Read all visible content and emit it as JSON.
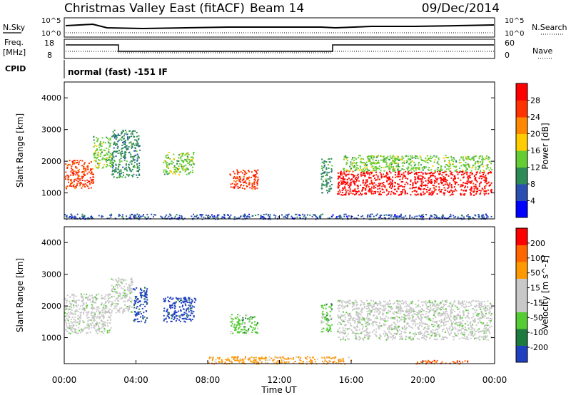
{
  "header": {
    "title": "Christmas Valley East (fitACF)",
    "beam": "Beam 14",
    "date": "09/Dec/2014"
  },
  "summary": {
    "nsky_label": "N.Sky",
    "nsearch_label": "N.Search",
    "freq_label_1": "Freq.",
    "freq_label_2": "[MHz]",
    "nave_label": "Nave",
    "cpid_label": "CPID",
    "cpid_text": "normal (fast) -151 IF",
    "noise_ticks_left": [
      "10^5",
      "10^0"
    ],
    "noise_ticks_right": [
      "10^5",
      "10^0"
    ],
    "freq_ticks": [
      "18",
      "8"
    ],
    "nave_ticks": [
      "60",
      "0"
    ]
  },
  "colors": {
    "power": [
      "#0000ff",
      "#2a4fb0",
      "#2e8b57",
      "#66cc33",
      "#ffcc00",
      "#ff8800",
      "#ff3300",
      "#ff0000"
    ],
    "velocity": [
      "#2040c0",
      "#1f7a3f",
      "#55cc33",
      "#c8c8c8",
      "#c8c8c8",
      "#ff9900",
      "#ff6600",
      "#ff0000"
    ]
  },
  "chart_data": [
    {
      "type": "heatmap",
      "name": "power",
      "ylabel": "Slant Range [km]",
      "ylim": [
        180,
        4500
      ],
      "yticks": [
        "4000",
        "3000",
        "2000",
        "1000"
      ],
      "xlim": [
        0,
        24
      ],
      "colorbar_label": "Power [dB]",
      "colorbar_ticks": [
        "28",
        "24",
        "20",
        "16",
        "12",
        "8",
        "4"
      ],
      "regions": [
        {
          "t0": 0.0,
          "t1": 1.6,
          "r0": 1150,
          "r1": 2050,
          "level": 6
        },
        {
          "t0": 1.6,
          "t1": 2.6,
          "r0": 1800,
          "r1": 2800,
          "level": 3
        },
        {
          "t0": 2.6,
          "t1": 4.2,
          "r0": 1500,
          "r1": 3000,
          "level": 2
        },
        {
          "t0": 5.5,
          "t1": 7.2,
          "r0": 1600,
          "r1": 2300,
          "level": 3
        },
        {
          "t0": 9.2,
          "t1": 10.8,
          "r0": 1150,
          "r1": 1750,
          "level": 6
        },
        {
          "t0": 14.3,
          "t1": 14.9,
          "r0": 1000,
          "r1": 2100,
          "level": 2
        },
        {
          "t0": 15.2,
          "t1": 23.8,
          "r0": 950,
          "r1": 1700,
          "level": 7
        },
        {
          "t0": 15.5,
          "t1": 23.8,
          "r0": 1700,
          "r1": 2200,
          "level": 3
        },
        {
          "t0": 0.0,
          "t1": 23.8,
          "r0": 190,
          "r1": 350,
          "level": 1
        }
      ]
    },
    {
      "type": "heatmap",
      "name": "velocity",
      "xlabel": "Time UT",
      "ylabel": "Slant Range [km]",
      "ylim": [
        180,
        4500
      ],
      "yticks": [
        "4000",
        "3000",
        "2000",
        "1000"
      ],
      "xlim": [
        0,
        24
      ],
      "xticks": [
        "00:00",
        "04:00",
        "08:00",
        "12:00",
        "16:00",
        "20:00",
        "00:00"
      ],
      "colorbar_label": "Velocity [m s^-1]",
      "colorbar_ticks": [
        "200",
        "100",
        "50",
        "15",
        "-15",
        "-50",
        "-100",
        "-200"
      ],
      "regions": [
        {
          "t0": 0.0,
          "t1": 2.6,
          "r0": 1150,
          "r1": 2400,
          "level": 3
        },
        {
          "t0": 2.6,
          "t1": 3.8,
          "r0": 1800,
          "r1": 2900,
          "level": 3
        },
        {
          "t0": 3.8,
          "t1": 4.6,
          "r0": 1500,
          "r1": 2600,
          "level": 0
        },
        {
          "t0": 5.5,
          "t1": 7.3,
          "r0": 1500,
          "r1": 2300,
          "level": 0
        },
        {
          "t0": 9.2,
          "t1": 10.8,
          "r0": 1150,
          "r1": 1750,
          "level": 2
        },
        {
          "t0": 14.3,
          "t1": 14.9,
          "r0": 1200,
          "r1": 2100,
          "level": 2
        },
        {
          "t0": 15.2,
          "t1": 23.8,
          "r0": 950,
          "r1": 2200,
          "level": 3
        },
        {
          "t0": 8.0,
          "t1": 16.0,
          "r0": 190,
          "r1": 420,
          "level": 5
        },
        {
          "t0": 19.5,
          "t1": 22.5,
          "r0": 190,
          "r1": 300,
          "level": 6
        }
      ]
    }
  ]
}
